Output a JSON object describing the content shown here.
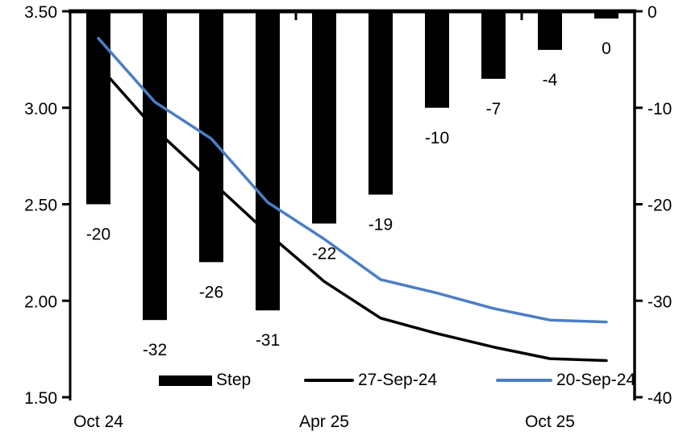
{
  "chart_data": {
    "type": "bar+line combo",
    "title": "",
    "background_color": "#FFFFFF",
    "axis_color": "#000000",
    "categories": [
      "1",
      "2",
      "3",
      "4",
      "5",
      "6",
      "7",
      "8",
      "9",
      "10"
    ],
    "bar": {
      "name": "Step",
      "axis": "right",
      "color": "#000000",
      "values": [
        -20,
        -32,
        -26,
        -31,
        -22,
        -19,
        -10,
        -7,
        -4,
        0
      ],
      "labels": [
        "-20",
        "-32",
        "-26",
        "-31",
        "-22",
        "-19",
        "-10",
        "-7",
        "-4",
        "0"
      ]
    },
    "series": [
      {
        "name": "27-Sep-24",
        "axis": "left",
        "color": "#000000",
        "values": [
          3.22,
          2.89,
          2.62,
          2.35,
          2.1,
          1.91,
          1.83,
          1.76,
          1.7,
          1.69
        ]
      },
      {
        "name": "20-Sep-24",
        "axis": "left",
        "color": "#4B7EC5",
        "values": [
          3.36,
          3.03,
          2.84,
          2.51,
          2.32,
          2.11,
          2.04,
          1.96,
          1.9,
          1.89
        ]
      }
    ],
    "left_axis": {
      "min": 1.5,
      "max": 3.5,
      "ticks": [
        "3.50",
        "3.00",
        "2.50",
        "2.00",
        "1.50"
      ]
    },
    "right_axis": {
      "min": -40,
      "max": 0,
      "ticks": [
        "0",
        "-10",
        "-20",
        "-30",
        "-40"
      ]
    },
    "x_axis": {
      "labels": [
        {
          "text": "Oct 24",
          "category_index": 0
        },
        {
          "text": "Apr 25",
          "category_index": 4
        },
        {
          "text": "Oct 25",
          "category_index": 8
        }
      ],
      "boundary_ticks": [
        4,
        8
      ]
    },
    "legend_position": "bottom",
    "grid": false
  }
}
